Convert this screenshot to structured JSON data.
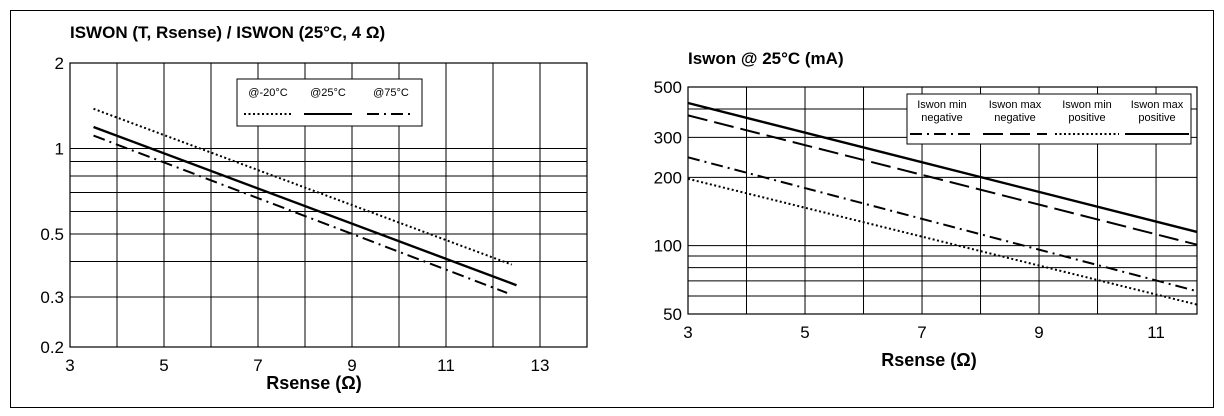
{
  "chart_data": [
    {
      "type": "line",
      "title": "ISWON (T, Rsense) / ISWON (25°C, 4 Ω)",
      "xlabel": "Rsense (Ω)",
      "ylabel": "",
      "xlim": [
        3,
        14
      ],
      "ylim": [
        0.2,
        2
      ],
      "yscale": "log",
      "grid": true,
      "legend_position": "top-right",
      "x_ticks": [
        "3",
        "5",
        "7",
        "9",
        "11",
        "13"
      ],
      "y_ticks": [
        "0.2",
        "0.3",
        "0.5",
        "1",
        "2"
      ],
      "series": [
        {
          "name": "@-20°C",
          "style": "dotted",
          "x": [
            3.5,
            12.4
          ],
          "y": [
            1.38,
            0.39
          ]
        },
        {
          "name": "@25°C",
          "style": "solid",
          "x": [
            3.5,
            12.5
          ],
          "y": [
            1.19,
            0.33
          ]
        },
        {
          "name": "@75°C",
          "style": "dash-dot",
          "x": [
            3.5,
            12.3
          ],
          "y": [
            1.11,
            0.31
          ]
        }
      ]
    },
    {
      "type": "line",
      "title": "Iswon @ 25°C (mA)",
      "xlabel": "Rsense (Ω)",
      "ylabel": "",
      "xlim": [
        3,
        11.7
      ],
      "ylim": [
        50,
        500
      ],
      "yscale": "log",
      "grid": true,
      "legend_position": "top-right",
      "x_ticks": [
        "3",
        "5",
        "7",
        "9",
        "11"
      ],
      "y_ticks": [
        "50",
        "100",
        "200",
        "300",
        "500"
      ],
      "series": [
        {
          "name": "Iswon min negative",
          "style": "dash-dot",
          "x": [
            3,
            11.7
          ],
          "y": [
            245,
            63
          ]
        },
        {
          "name": "Iswon max negative",
          "style": "long-dash",
          "x": [
            3,
            11.7
          ],
          "y": [
            375,
            101
          ]
        },
        {
          "name": "Iswon min positive",
          "style": "dotted",
          "x": [
            3,
            11.7
          ],
          "y": [
            197,
            55
          ]
        },
        {
          "name": "Iswon max positive",
          "style": "solid",
          "x": [
            3,
            11.7
          ],
          "y": [
            425,
            115
          ]
        }
      ]
    }
  ]
}
